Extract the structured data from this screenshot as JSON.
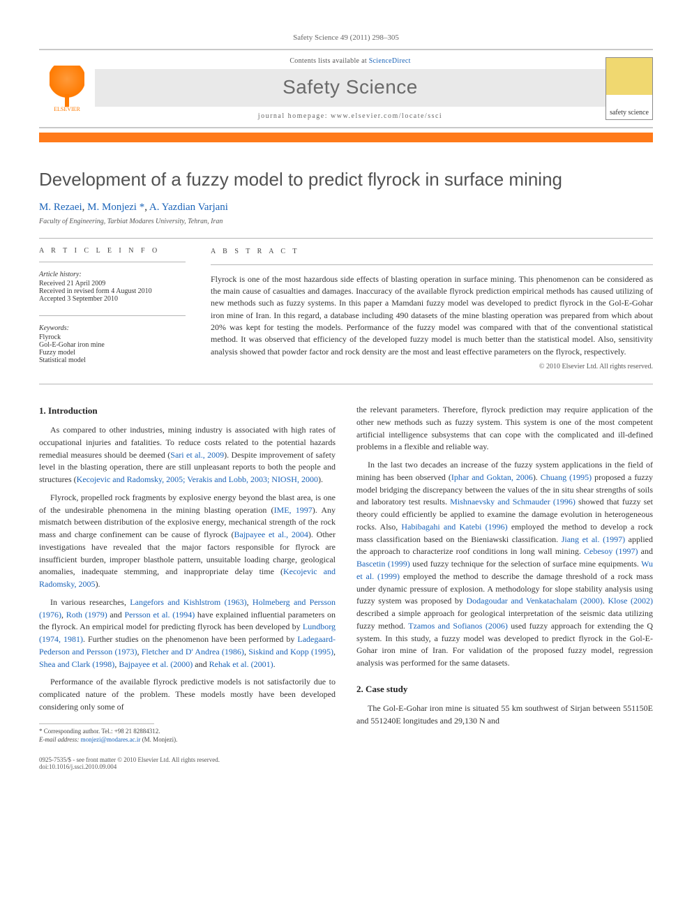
{
  "journal_ref": "Safety Science 49 (2011) 298–305",
  "header": {
    "elsevier_label": "ELSEVIER",
    "contents_prefix": "Contents lists available at ",
    "contents_link": "ScienceDirect",
    "journal_title": "Safety Science",
    "homepage_prefix": "journal homepage: ",
    "homepage_url": "www.elsevier.com/locate/ssci",
    "cover_thumb_top": "",
    "cover_thumb_label": "safety science"
  },
  "colors": {
    "accent_orange": "#ff7a1a",
    "link_blue": "#1a63b8",
    "title_gray": "#525252",
    "band_bg": "#e9e9e9",
    "rule_gray": "#b5b5b5",
    "text": "#333333"
  },
  "article": {
    "title": "Development of a fuzzy model to predict flyrock in surface mining",
    "authors_html_parts": {
      "a1": "M. Rezaei",
      "a2": "M. Monjezi",
      "sup": "*",
      "a3": "A. Yazdian Varjani"
    },
    "affiliation": "Faculty of Engineering, Tarbiat Modares University, Tehran, Iran"
  },
  "info": {
    "section_label": "A R T I C L E   I N F O",
    "history_title": "Article history:",
    "history_lines": [
      "Received 21 April 2009",
      "Received in revised form 4 August 2010",
      "Accepted 3 September 2010"
    ],
    "keywords_title": "Keywords:",
    "keywords": [
      "Flyrock",
      "Gol-E-Gohar iron mine",
      "Fuzzy model",
      "Statistical model"
    ]
  },
  "abstract": {
    "section_label": "A B S T R A C T",
    "text": "Flyrock is one of the most hazardous side effects of blasting operation in surface mining. This phenomenon can be considered as the main cause of casualties and damages. Inaccuracy of the available flyrock prediction empirical methods has caused utilizing of new methods such as fuzzy systems. In this paper a Mamdani fuzzy model was developed to predict flyrock in the Gol-E-Gohar iron mine of Iran. In this regard, a database including 490 datasets of the mine blasting operation was prepared from which about 20% was kept for testing the models. Performance of the fuzzy model was compared with that of the conventional statistical method. It was observed that efficiency of the developed fuzzy model is much better than the statistical model. Also, sensitivity analysis showed that powder factor and rock density are the most and least effective parameters on the flyrock, respectively.",
    "copyright": "© 2010 Elsevier Ltd. All rights reserved."
  },
  "body": {
    "sec1_title": "1. Introduction",
    "p1a": "As compared to other industries, mining industry is associated with high rates of occupational injuries and fatalities. To reduce costs related to the potential hazards remedial measures should be deemed (",
    "p1_ref1": "Sari et al., 2009",
    "p1b": "). Despite improvement of safety level in the blasting operation, there are still unpleasant reports to both the people and structures (",
    "p1_ref2": "Kecojevic and Radomsky, 2005; Verakis and Lobb, 2003; NIOSH, 2000",
    "p1c": ").",
    "p2a": "Flyrock, propelled rock fragments by explosive energy beyond the blast area, is one of the undesirable phenomena in the mining blasting operation (",
    "p2_ref1": "IME, 1997",
    "p2b": "). Any mismatch between distribution of the explosive energy, mechanical strength of the rock mass and charge confinement can be cause of flyrock (",
    "p2_ref2": "Bajpayee et al., 2004",
    "p2c": "). Other investigations have revealed that the major factors responsible for flyrock are insufficient burden, improper blasthole pattern, unsuitable loading charge, geological anomalies, inadequate stemming, and inappropriate delay time (",
    "p2_ref3": "Kecojevic and Radomsky, 2005",
    "p2d": ").",
    "p3a": "In various researches, ",
    "p3_ref1": "Langefors and Kishlstrom (1963)",
    "p3b": ", ",
    "p3_ref2": "Holmeberg and Persson (1976)",
    "p3c": ", ",
    "p3_ref3": "Roth (1979)",
    "p3d": " and ",
    "p3_ref4": "Persson et al. (1994)",
    "p3e": " have explained influential parameters on the flyrock. An empirical model for predicting flyrock has been developed by ",
    "p3_ref5": "Lundborg (1974, 1981)",
    "p3f": ". Further studies on the phenomenon have been performed by ",
    "p3_ref6": "Ladegaard-Pederson and Persson (1973)",
    "p3g": ", ",
    "p3_ref7": "Fletcher and D' Andrea (1986)",
    "p3h": ", ",
    "p3_ref8": "Siskind and Kopp (1995)",
    "p3i": ", ",
    "p3_ref9": "Shea and Clark (1998)",
    "p3j": ", ",
    "p3_ref10": "Bajpayee et al. (2000)",
    "p3k": " and ",
    "p3_ref11": "Rehak et al. (2001)",
    "p3l": ".",
    "p4": "Performance of the available flyrock predictive models is not satisfactorily due to complicated nature of the problem. These models mostly have been developed considering only some of",
    "p5": "the relevant parameters. Therefore, flyrock prediction may require application of the other new methods such as fuzzy system. This system is one of the most competent artificial intelligence subsystems that can cope with the complicated and ill-defined problems in a flexible and reliable way.",
    "p6a": "In the last two decades an increase of the fuzzy system applications in the field of mining has been observed (",
    "p6_ref1": "Iphar and Goktan, 2006",
    "p6b": "). ",
    "p6_ref2": "Chuang (1995)",
    "p6c": " proposed a fuzzy model bridging the discrepancy between the values of the in situ shear strengths of soils and laboratory test results. ",
    "p6_ref3": "Mishnaevsky and Schmauder (1996)",
    "p6d": " showed that fuzzy set theory could efficiently be applied to examine the damage evolution in heterogeneous rocks. Also, ",
    "p6_ref4": "Habibagahi and Katebi (1996)",
    "p6e": " employed the method to develop a rock mass classification based on the Bieniawski classification. ",
    "p6_ref5": "Jiang et al. (1997)",
    "p6f": " applied the approach to characterize roof conditions in long wall mining. ",
    "p6_ref6": "Cebesoy (1997)",
    "p6g": " and ",
    "p6_ref7": "Bascetin (1999)",
    "p6h": " used fuzzy technique for the selection of surface mine equipments. ",
    "p6_ref8": "Wu et al. (1999)",
    "p6i": " employed the method to describe the damage threshold of a rock mass under dynamic pressure of explosion. A methodology for slope stability analysis using fuzzy system was proposed by ",
    "p6_ref9": "Dodagoudar and Venkatachalam (2000)",
    "p6j": ". ",
    "p6_ref10": "Klose (2002)",
    "p6k": " described a simple approach for geological interpretation of the seismic data utilizing fuzzy method. ",
    "p6_ref11": "Tzamos and Sofianos (2006)",
    "p6l": " used fuzzy approach for extending the Q system. In this study, a fuzzy model was developed to predict flyrock in the Gol-E-Gohar iron mine of Iran. For validation of the proposed fuzzy model, regression analysis was performed for the same datasets.",
    "sec2_title": "2. Case study",
    "p7": "The Gol-E-Gohar iron mine is situated 55 km southwest of Sirjan between 551150E and 551240E longitudes and 29,130 N and"
  },
  "footnote": {
    "corr_prefix": "* Corresponding author. Tel.: +98 21 82884312.",
    "email_label": "E-mail address:",
    "email": "monjezi@modares.ac.ir",
    "email_owner": "(M. Monjezi)."
  },
  "footer": {
    "left1": "0925-7535/$ - see front matter © 2010 Elsevier Ltd. All rights reserved.",
    "left2": "doi:10.1016/j.ssci.2010.09.004"
  }
}
